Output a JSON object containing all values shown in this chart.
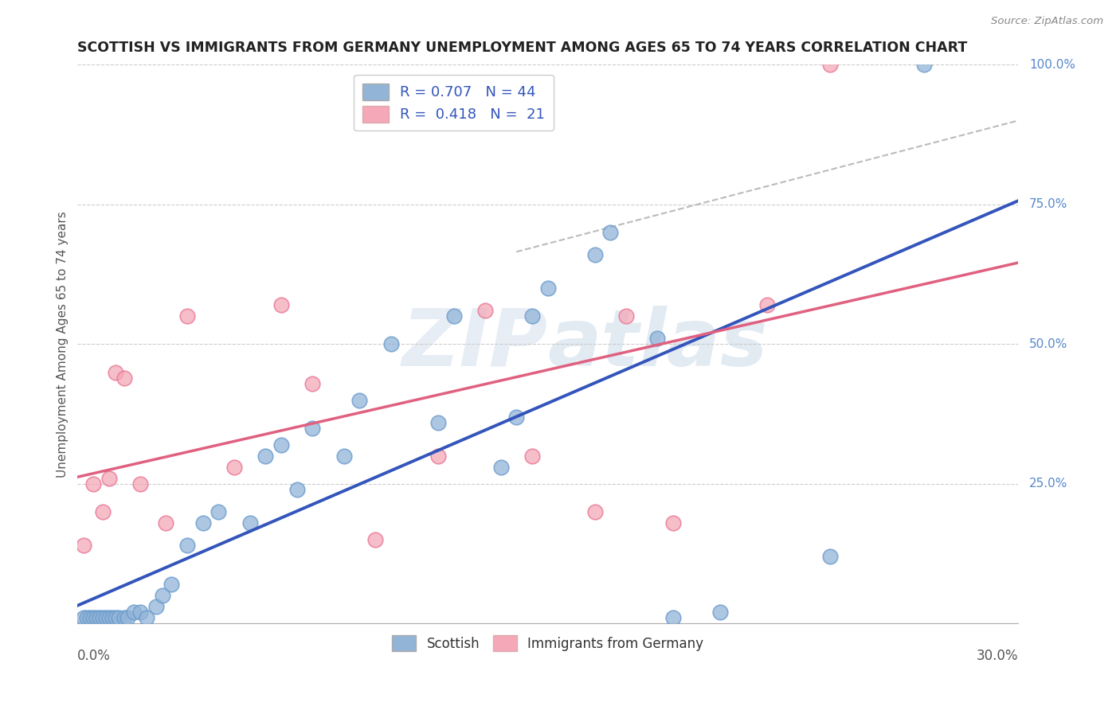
{
  "title": "SCOTTISH VS IMMIGRANTS FROM GERMANY UNEMPLOYMENT AMONG AGES 65 TO 74 YEARS CORRELATION CHART",
  "source": "Source: ZipAtlas.com",
  "ylabel": "Unemployment Among Ages 65 to 74 years",
  "legend_label1": "Scottish",
  "legend_label2": "Immigrants from Germany",
  "R1": 0.707,
  "N1": 44,
  "R2": 0.418,
  "N2": 21,
  "blue_color": "#92B4D7",
  "blue_edge_color": "#6699CC",
  "pink_color": "#F4A8B8",
  "pink_edge_color": "#E87090",
  "blue_line_color": "#3355BB",
  "pink_line_color": "#E06080",
  "gray_dash_color": "#BBBBBB",
  "watermark_color": "#D0DCEA",
  "xmin": 0.0,
  "xmax": 30.0,
  "ymin": 0.0,
  "ymax": 100.0,
  "blue_x": [
    0.2,
    0.3,
    0.4,
    0.5,
    0.6,
    0.7,
    0.8,
    0.9,
    1.0,
    1.1,
    1.2,
    1.3,
    1.5,
    1.6,
    1.8,
    2.0,
    2.2,
    2.5,
    2.7,
    3.0,
    3.5,
    4.0,
    4.5,
    5.5,
    6.0,
    6.5,
    7.0,
    7.5,
    8.5,
    9.0,
    10.0,
    11.5,
    12.0,
    13.5,
    14.0,
    14.5,
    15.0,
    16.5,
    17.0,
    18.5,
    19.0,
    20.5,
    24.0,
    27.0
  ],
  "blue_y": [
    1.0,
    1.0,
    1.0,
    1.0,
    1.0,
    1.0,
    1.0,
    1.0,
    1.0,
    1.0,
    1.0,
    1.0,
    1.0,
    1.0,
    2.0,
    2.0,
    1.0,
    3.0,
    5.0,
    7.0,
    14.0,
    18.0,
    20.0,
    18.0,
    30.0,
    32.0,
    24.0,
    35.0,
    30.0,
    40.0,
    50.0,
    36.0,
    55.0,
    28.0,
    37.0,
    55.0,
    60.0,
    66.0,
    70.0,
    51.0,
    1.0,
    2.0,
    12.0,
    100.0
  ],
  "pink_x": [
    0.2,
    0.5,
    0.8,
    1.0,
    1.2,
    1.5,
    2.0,
    2.8,
    3.5,
    5.0,
    6.5,
    7.5,
    9.5,
    11.5,
    13.0,
    14.5,
    16.5,
    17.5,
    19.0,
    22.0,
    24.0
  ],
  "pink_y": [
    14.0,
    25.0,
    20.0,
    26.0,
    45.0,
    44.0,
    25.0,
    18.0,
    55.0,
    28.0,
    57.0,
    43.0,
    15.0,
    30.0,
    56.0,
    30.0,
    20.0,
    55.0,
    18.0,
    57.0,
    100.0
  ],
  "right_labels": [
    [
      100,
      "100.0%"
    ],
    [
      75,
      "75.0%"
    ],
    [
      50,
      "50.0%"
    ],
    [
      25,
      "25.0%"
    ]
  ]
}
